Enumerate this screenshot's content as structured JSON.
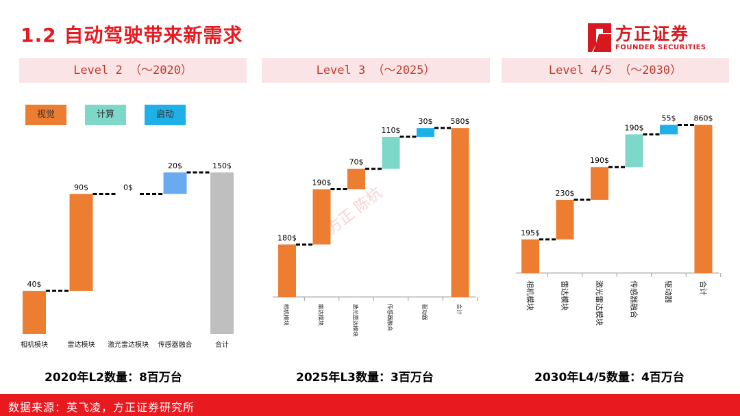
{
  "title": "1.2 自动驾驶带来新需求",
  "logo": {
    "name": "方正证券",
    "sub": "FOUNDER SECURITIES"
  },
  "levels": [
    "Level 2 （～2020）",
    "Level 3 （～2025）",
    "Level 4/5 （～2030）"
  ],
  "legend": [
    {
      "label": "视觉",
      "color": "#ed7d31"
    },
    {
      "label": "计算",
      "color": "#7dd8c9"
    },
    {
      "label": "启动",
      "color": "#1fb0e8"
    }
  ],
  "colors": {
    "orange": "#ed7d31",
    "teal": "#7dd8c9",
    "blue": "#1fb0e8",
    "lightblue": "#6aabf0",
    "gray": "#bfbfbf"
  },
  "captions": [
    "2020年L2数量：8百万台",
    "2025年L3数量：3百万台",
    "2030年L4/5数量：4百万台"
  ],
  "watermark": "方正  陈杭",
  "footer": "数据来源：英飞凌，方正证券研究所",
  "chart_data": [
    {
      "type": "bar",
      "subtype": "waterfall",
      "categories": [
        "相机模块",
        "雷达模块",
        "激光雷达模块",
        "传感器融合",
        "合计"
      ],
      "values": [
        40,
        90,
        0,
        20,
        150
      ],
      "labels": [
        "40$",
        "90$",
        "0$",
        "20$",
        "150$"
      ],
      "colors": [
        "orange",
        "orange",
        "orange",
        "lightblue",
        "gray"
      ],
      "total_index": 4,
      "ylim": [
        0,
        160
      ]
    },
    {
      "type": "bar",
      "subtype": "waterfall",
      "categories": [
        "相机模块",
        "雷达模块",
        "激光雷达模块",
        "传感器融合",
        "驱动器",
        "合计"
      ],
      "values": [
        180,
        190,
        70,
        110,
        30,
        580
      ],
      "labels": [
        "180$",
        "190$",
        "70$",
        "110$",
        "30$",
        "580$"
      ],
      "colors": [
        "orange",
        "orange",
        "orange",
        "teal",
        "blue",
        "orange"
      ],
      "total_index": 5,
      "ylim": [
        0,
        580
      ]
    },
    {
      "type": "bar",
      "subtype": "waterfall",
      "categories": [
        "相机模块",
        "雷达模块",
        "激光雷达模块",
        "传感器融合",
        "驱动器",
        "合计"
      ],
      "values": [
        195,
        230,
        190,
        190,
        55,
        860
      ],
      "labels": [
        "195$",
        "230$",
        "190$",
        "190$",
        "55$",
        "860$"
      ],
      "colors": [
        "orange",
        "orange",
        "orange",
        "teal",
        "blue",
        "orange"
      ],
      "total_index": 5,
      "ylim": [
        0,
        860
      ]
    }
  ]
}
